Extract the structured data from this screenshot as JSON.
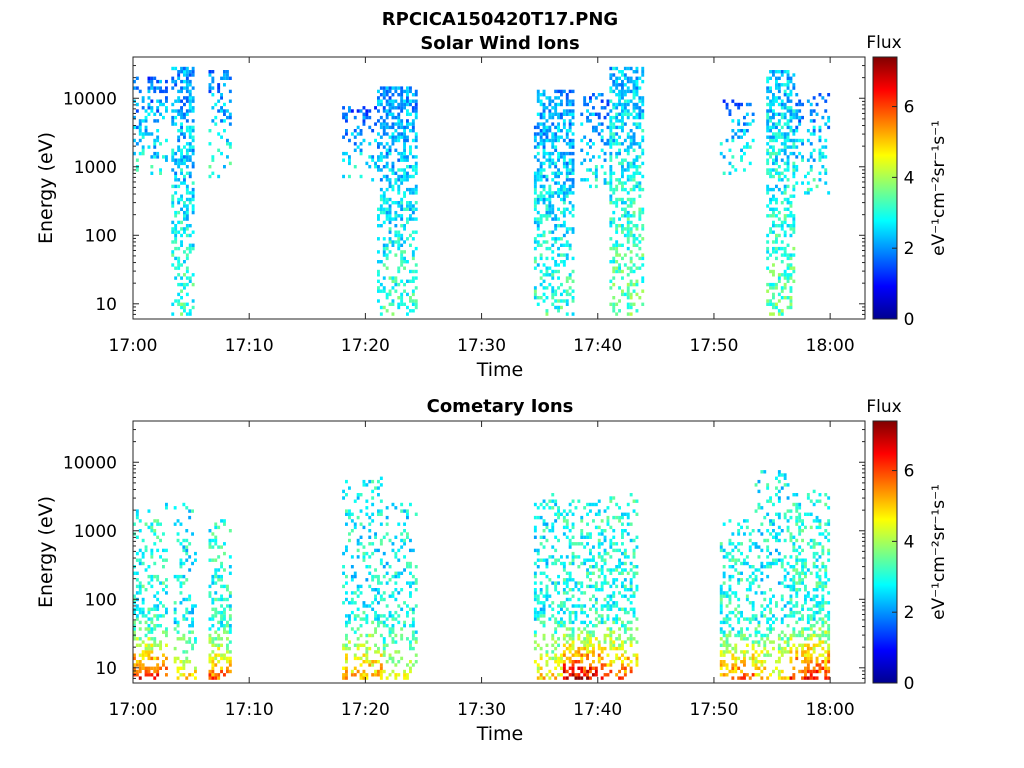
{
  "figure_title": "RPCICA150420T17.PNG",
  "chart_data": [
    {
      "type": "heatmap",
      "title": "Solar Wind Ions",
      "xlabel": "Time",
      "ylabel": "Energy (eV)",
      "xticks": [
        "17:00",
        "17:10",
        "17:20",
        "17:30",
        "17:40",
        "17:50",
        "18:00"
      ],
      "xlim_minutes": [
        0,
        63
      ],
      "yscale": "log",
      "ylim": [
        6,
        40000
      ],
      "yticks": [
        10,
        100,
        1000,
        10000
      ],
      "ytick_labels": [
        "10",
        "100",
        "1000",
        "10000"
      ],
      "colorbar": {
        "title": "Flux",
        "label": "eV⁻¹cm⁻²sr⁻¹s⁻¹",
        "range": [
          0,
          7.4
        ],
        "ticks": [
          0,
          2,
          4,
          6
        ],
        "colormap": "jet"
      },
      "bursts": [
        {
          "start": 0.0,
          "end": 3.0,
          "emin": 700,
          "emax": 20000,
          "flux": 1.7,
          "density": 0.28
        },
        {
          "start": 3.3,
          "end": 5.3,
          "emin": 6,
          "emax": 30000,
          "flux": 2.0,
          "density": 0.45
        },
        {
          "start": 6.5,
          "end": 8.5,
          "emin": 700,
          "emax": 25000,
          "flux": 1.8,
          "density": 0.25
        },
        {
          "start": 18.0,
          "end": 21.0,
          "emin": 600,
          "emax": 8000,
          "flux": 1.6,
          "density": 0.25
        },
        {
          "start": 21.0,
          "end": 24.5,
          "emin": 6,
          "emax": 15000,
          "flux": 2.0,
          "density": 0.5
        },
        {
          "start": 34.5,
          "end": 37.8,
          "emin": 6,
          "emax": 14000,
          "flux": 2.0,
          "density": 0.5
        },
        {
          "start": 38.5,
          "end": 41.0,
          "emin": 400,
          "emax": 12000,
          "flux": 1.8,
          "density": 0.3
        },
        {
          "start": 41.0,
          "end": 43.8,
          "emin": 6,
          "emax": 30000,
          "flux": 2.3,
          "density": 0.5
        },
        {
          "start": 50.5,
          "end": 53.5,
          "emin": 800,
          "emax": 10000,
          "flux": 1.8,
          "density": 0.25
        },
        {
          "start": 54.5,
          "end": 57.0,
          "emin": 6,
          "emax": 25000,
          "flux": 2.3,
          "density": 0.5
        },
        {
          "start": 57.0,
          "end": 60.0,
          "emin": 400,
          "emax": 12000,
          "flux": 1.8,
          "density": 0.3
        }
      ]
    },
    {
      "type": "heatmap",
      "title": "Cometary Ions",
      "xlabel": "Time",
      "ylabel": "Energy (eV)",
      "xticks": [
        "17:00",
        "17:10",
        "17:20",
        "17:30",
        "17:40",
        "17:50",
        "18:00"
      ],
      "xlim_minutes": [
        0,
        63
      ],
      "yscale": "log",
      "ylim": [
        6,
        40000
      ],
      "yticks": [
        10,
        100,
        1000,
        10000
      ],
      "ytick_labels": [
        "10",
        "100",
        "1000",
        "10000"
      ],
      "colorbar": {
        "title": "Flux",
        "label": "eV⁻¹cm⁻²sr⁻¹s⁻¹",
        "range": [
          0,
          7.4
        ],
        "ticks": [
          0,
          2,
          4,
          6
        ],
        "colormap": "jet"
      },
      "bursts": [
        {
          "start": 0.0,
          "end": 3.0,
          "emin": 6,
          "emax": 2500,
          "flux": 3.0,
          "density": 0.35,
          "lowflux": 6.5
        },
        {
          "start": 3.5,
          "end": 5.5,
          "emin": 6,
          "emax": 2500,
          "flux": 2.8,
          "density": 0.3,
          "lowflux": 5.0
        },
        {
          "start": 6.5,
          "end": 8.5,
          "emin": 6,
          "emax": 1500,
          "flux": 3.0,
          "density": 0.4,
          "lowflux": 6.0
        },
        {
          "start": 18.0,
          "end": 21.5,
          "emin": 6,
          "emax": 6000,
          "flux": 2.8,
          "density": 0.3,
          "lowflux": 5.5
        },
        {
          "start": 21.5,
          "end": 24.5,
          "emin": 6,
          "emax": 3000,
          "flux": 2.8,
          "density": 0.3,
          "lowflux": 4.5
        },
        {
          "start": 34.5,
          "end": 37.0,
          "emin": 6,
          "emax": 4000,
          "flux": 2.8,
          "density": 0.35,
          "lowflux": 5.0
        },
        {
          "start": 37.0,
          "end": 40.5,
          "emin": 6,
          "emax": 3000,
          "flux": 3.0,
          "density": 0.45,
          "lowflux": 7.0
        },
        {
          "start": 40.5,
          "end": 43.5,
          "emin": 6,
          "emax": 4000,
          "flux": 3.0,
          "density": 0.4,
          "lowflux": 6.0
        },
        {
          "start": 50.5,
          "end": 53.5,
          "emin": 6,
          "emax": 1500,
          "flux": 3.0,
          "density": 0.4,
          "lowflux": 6.0
        },
        {
          "start": 53.5,
          "end": 56.5,
          "emin": 6,
          "emax": 8000,
          "flux": 2.8,
          "density": 0.35,
          "lowflux": 5.0
        },
        {
          "start": 56.5,
          "end": 60.0,
          "emin": 6,
          "emax": 4000,
          "flux": 3.0,
          "density": 0.45,
          "lowflux": 6.5
        }
      ]
    }
  ]
}
